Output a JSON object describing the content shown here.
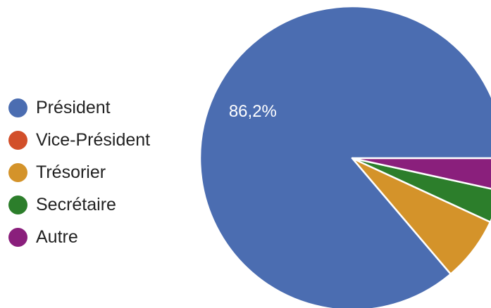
{
  "chart_data": {
    "type": "pie",
    "title": "",
    "slices": [
      {
        "label": "Président",
        "value": 86.2,
        "color": "#4b6db1",
        "data_label": "86,2%"
      },
      {
        "label": "Vice-Président",
        "value": 0.0,
        "color": "#d24f2a"
      },
      {
        "label": "Trésorier",
        "value": 6.9,
        "color": "#d4932a"
      },
      {
        "label": "Secrétaire",
        "value": 3.45,
        "color": "#2c7e2b"
      },
      {
        "label": "Autre",
        "value": 3.45,
        "color": "#8a1f7c"
      }
    ],
    "legend_position": "left",
    "start_angle": "3 o'clock, counter-clockwise"
  }
}
